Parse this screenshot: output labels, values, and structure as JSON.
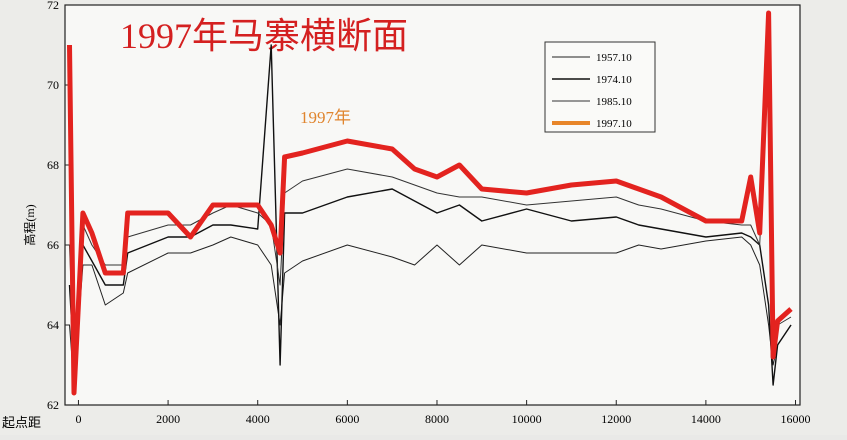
{
  "chart_data": {
    "type": "line",
    "title": "1997年马寨横断面",
    "annotation": "1997年",
    "ylabel": "高程(m)",
    "xlabel": "起点距",
    "x": [
      -200,
      -100,
      0,
      100,
      300,
      600,
      1000,
      1100,
      2000,
      2500,
      3000,
      3400,
      4000,
      4300,
      4500,
      4600,
      5000,
      6000,
      7000,
      7500,
      8000,
      8500,
      9000,
      10000,
      11000,
      12000,
      12500,
      13000,
      14000,
      14800,
      15000,
      15200,
      15400,
      15500,
      15600,
      15900
    ],
    "series": [
      {
        "name": "1957.10",
        "color": "#222222",
        "width": 1,
        "values": [
          64,
          62.5,
          64,
          65.5,
          65.5,
          64.5,
          64.8,
          65.3,
          65.8,
          65.8,
          66,
          66.2,
          66,
          65.5,
          64,
          65.3,
          65.6,
          66,
          65.7,
          65.5,
          66,
          65.5,
          66,
          65.8,
          65.8,
          65.8,
          66,
          65.9,
          66.1,
          66.2,
          66,
          65.5,
          64,
          63,
          63.5,
          64
        ]
      },
      {
        "name": "1974.10",
        "color": "#111111",
        "width": 1.4,
        "values": [
          65,
          63,
          64.8,
          66,
          65.6,
          65,
          65,
          65.8,
          66.2,
          66.2,
          66.5,
          66.5,
          66.4,
          71,
          63,
          66.8,
          66.8,
          67.2,
          67.4,
          67.1,
          66.8,
          67,
          66.6,
          66.9,
          66.6,
          66.7,
          66.5,
          66.4,
          66.2,
          66.3,
          66.2,
          66,
          64.5,
          62.5,
          63.5,
          64
        ]
      },
      {
        "name": "1985.10",
        "color": "#333333",
        "width": 1,
        "values": [
          66,
          63,
          65,
          66.5,
          66,
          65.5,
          65.5,
          66.2,
          66.5,
          66.5,
          66.8,
          67,
          66.8,
          66.5,
          65,
          67.3,
          67.6,
          67.9,
          67.7,
          67.5,
          67.3,
          67.2,
          67.2,
          67,
          67.1,
          67.2,
          67,
          66.9,
          66.6,
          66.5,
          66.5,
          66,
          71,
          63.5,
          64,
          64.2
        ]
      },
      {
        "name": "1997.10",
        "color": "#e3231f",
        "legend_color": "#e8862a",
        "width": 5,
        "values": [
          71,
          62.3,
          64.5,
          66.8,
          66.3,
          65.3,
          65.3,
          66.8,
          66.8,
          66.2,
          67,
          67,
          67,
          66.5,
          65.8,
          68.2,
          68.3,
          68.6,
          68.4,
          67.9,
          67.7,
          68.0,
          67.4,
          67.3,
          67.5,
          67.6,
          67.4,
          67.2,
          66.6,
          66.6,
          67.7,
          66.3,
          71.8,
          63.2,
          64.1,
          64.4
        ]
      }
    ],
    "xlim": [
      -300,
      16100
    ],
    "xticks": [
      0,
      2000,
      4000,
      6000,
      8000,
      10000,
      12000,
      14000,
      16000
    ],
    "ylim": [
      62,
      72
    ],
    "yticks": [
      62,
      64,
      66,
      68,
      70,
      72
    ]
  }
}
